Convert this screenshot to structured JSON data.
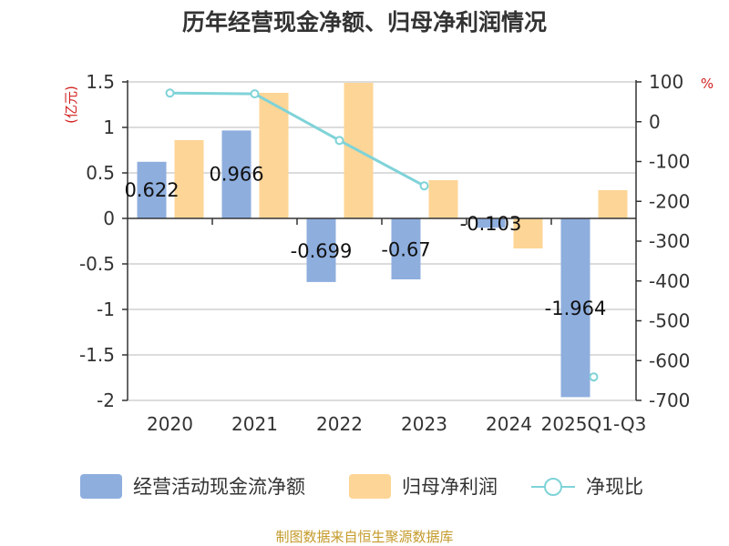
{
  "title": "历年经营现金净额、归母净利润情况",
  "source": "制图数据来自恒生聚源数据库",
  "colors": {
    "cash": "#8eaede",
    "profit": "#fdd596",
    "ratio": "#7fd3d8",
    "unit": "#d22020",
    "source": "#c49a2a",
    "grid": "#d0d0d0",
    "axis": "#333333"
  },
  "chart_data": {
    "type": "bar+line",
    "title": "历年经营现金净额、归母净利润情况",
    "categories": [
      "2020",
      "2021",
      "2022",
      "2023",
      "2024",
      "2025Q1-Q3"
    ],
    "left_axis": {
      "unit": "(亿元)",
      "ylim": [
        -2,
        1.5
      ],
      "ticks": [
        1.5,
        1,
        0.5,
        0,
        -0.5,
        -1,
        -1.5,
        -2
      ],
      "tick_labels": [
        "1.5",
        "1",
        "0.5",
        "0",
        "-0.5",
        "-1",
        "-1.5",
        "-2"
      ]
    },
    "right_axis": {
      "unit": "%",
      "ylim": [
        -700,
        100
      ],
      "ticks": [
        100,
        0,
        -100,
        -200,
        -300,
        -400,
        -500,
        -600,
        -700
      ],
      "tick_labels": [
        "100",
        "0",
        "-100",
        "-200",
        "-300",
        "-400",
        "-500",
        "-600",
        "-700"
      ]
    },
    "series": [
      {
        "name": "经营活动现金流净额",
        "kind": "bar",
        "axis": "left",
        "values": [
          0.622,
          0.966,
          -0.699,
          -0.67,
          -0.103,
          -1.964
        ],
        "labels": [
          "0.622",
          "0.966",
          "-0.699",
          "-0.67",
          "-0.103",
          "-1.964"
        ]
      },
      {
        "name": "归母净利润",
        "kind": "bar",
        "axis": "left",
        "values": [
          0.86,
          1.38,
          1.49,
          0.42,
          -0.33,
          0.31
        ]
      },
      {
        "name": "净现比",
        "kind": "line",
        "axis": "right",
        "values": [
          72,
          70,
          -47,
          -161,
          null,
          -641
        ]
      }
    ]
  }
}
